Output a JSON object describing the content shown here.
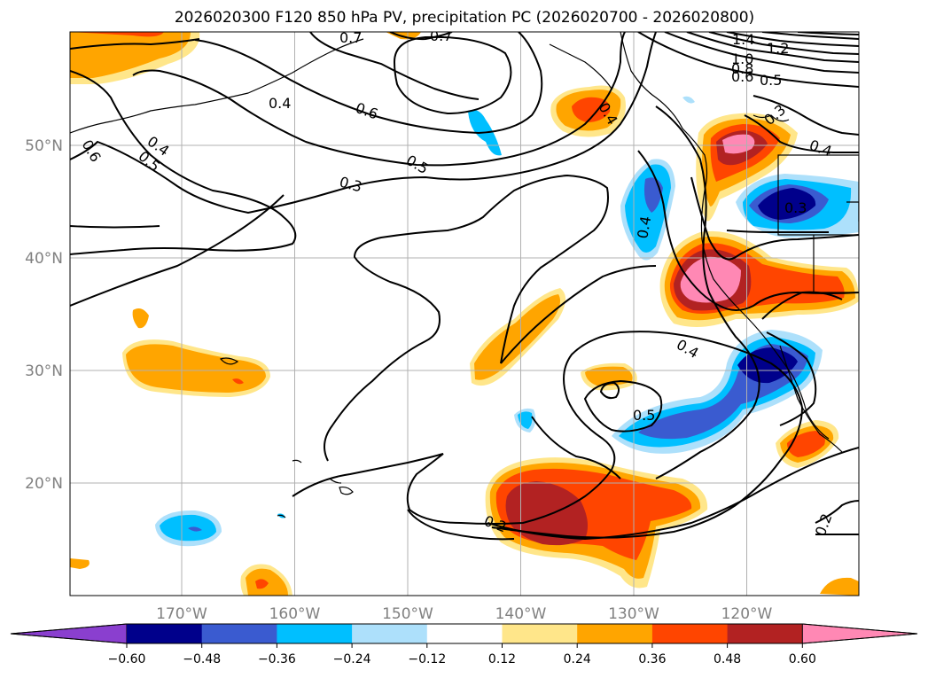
{
  "title": "2026020300 F120 850 hPa PV, precipitation PC (2026020700 - 2026020800)",
  "map": {
    "lon_ticks": [
      {
        "lon": -170,
        "label": "170°W"
      },
      {
        "lon": -160,
        "label": "160°W"
      },
      {
        "lon": -150,
        "label": "150°W"
      },
      {
        "lon": -140,
        "label": "140°W"
      },
      {
        "lon": -130,
        "label": "130°W"
      },
      {
        "lon": -120,
        "label": "120°W"
      }
    ],
    "lat_ticks": [
      {
        "lat": 20,
        "label": "20°N"
      },
      {
        "lat": 30,
        "label": "30°N"
      },
      {
        "lat": 40,
        "label": "40°N"
      },
      {
        "lat": 50,
        "label": "50°N"
      }
    ],
    "contour_labels": [
      "0.7",
      "0.7",
      "1.4",
      "1.2",
      "1.0",
      "0.8",
      "0.6",
      "0.5",
      "0.4",
      "0.6",
      "0.5",
      "0.3",
      "0.4",
      "0.5",
      "0.6",
      "0.4",
      "0.3",
      "0.3",
      "0.4",
      "0.4",
      "0.5",
      "0.2",
      "0.2",
      "0.4"
    ]
  },
  "colorbar": {
    "ticks": [
      "−0.60",
      "−0.48",
      "−0.36",
      "−0.24",
      "−0.12",
      "0.12",
      "0.24",
      "0.36",
      "0.48",
      "0.60"
    ],
    "colors": [
      "#8a3fcf",
      "#00008b",
      "#3a5bd0",
      "#00bfff",
      "#ade0fb",
      "#ffffff",
      "#ffe68a",
      "#ffa500",
      "#ff4500",
      "#b22222",
      "#ff88b4"
    ]
  }
}
